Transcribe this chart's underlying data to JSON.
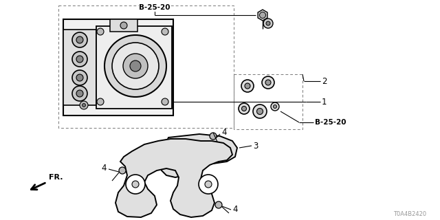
{
  "bg_color": "#ffffff",
  "part_code": "T0A4B2420",
  "labels": {
    "B25_20_top": "B-25-20",
    "B25_20_right": "B-25-20",
    "label_1": "1",
    "label_2": "2",
    "label_3": "3",
    "label_4": "4",
    "fr": "FR."
  },
  "line_color": "#000000",
  "dashed_color": "#777777",
  "text_color": "#000000",
  "figsize": [
    6.4,
    3.2
  ],
  "dpi": 100
}
